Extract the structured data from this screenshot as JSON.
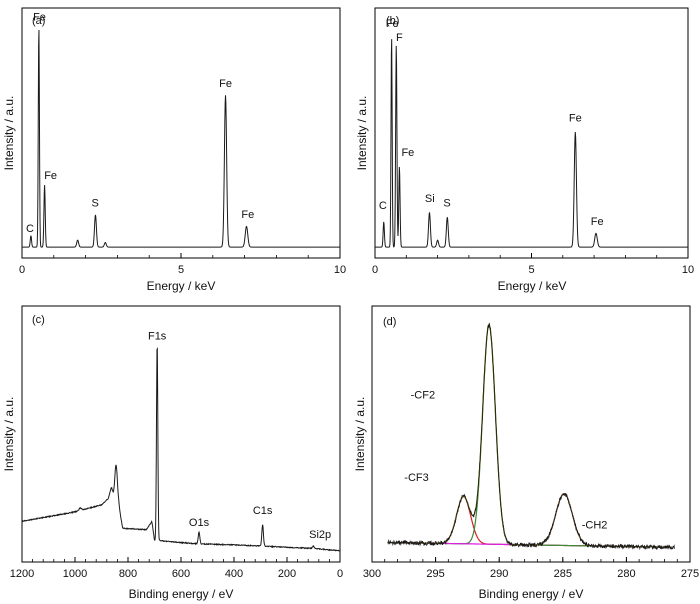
{
  "chart_data": [
    {
      "id": "a",
      "type": "line",
      "panel_label": "(a)",
      "xlabel": "Energy / keV",
      "ylabel": "Intensity / a.u.",
      "xlim": [
        0,
        10
      ],
      "ylim": [
        0,
        1
      ],
      "x_reversed": false,
      "xticks": [
        0,
        5,
        10
      ],
      "xtick_labels": [
        "0",
        "5",
        "10"
      ],
      "baseline": 0.004,
      "line_color": "#1a1a1a",
      "peaks": [
        {
          "x": 0.28,
          "h": 0.05,
          "w": 0.02
        },
        {
          "x": 0.53,
          "h": 0.96,
          "w": 0.018
        },
        {
          "x": 0.71,
          "h": 0.27,
          "w": 0.02
        },
        {
          "x": 1.75,
          "h": 0.03,
          "w": 0.03
        },
        {
          "x": 2.31,
          "h": 0.14,
          "w": 0.03
        },
        {
          "x": 2.62,
          "h": 0.02,
          "w": 0.03
        },
        {
          "x": 6.4,
          "h": 0.66,
          "w": 0.035
        },
        {
          "x": 7.06,
          "h": 0.09,
          "w": 0.04
        }
      ],
      "annotations": [
        {
          "text": "Fe",
          "x": 0.55,
          "y": 0.99
        },
        {
          "text": "Fe",
          "x": 0.9,
          "y": 0.3
        },
        {
          "text": "S",
          "x": 2.3,
          "y": 0.18
        },
        {
          "text": "C",
          "x": 0.25,
          "y": 0.07
        },
        {
          "text": "Fe",
          "x": 6.4,
          "y": 0.7
        },
        {
          "text": "Fe",
          "x": 7.1,
          "y": 0.13
        }
      ]
    },
    {
      "id": "b",
      "type": "line",
      "panel_label": "(b)",
      "xlabel": "Energy / keV",
      "ylabel": "Intensity / a.u.",
      "xlim": [
        0,
        10
      ],
      "ylim": [
        0,
        1
      ],
      "x_reversed": false,
      "xticks": [
        0,
        5,
        10
      ],
      "xtick_labels": [
        "0",
        "5",
        "10"
      ],
      "baseline": 0.004,
      "line_color": "#1a1a1a",
      "peaks": [
        {
          "x": 0.28,
          "h": 0.11,
          "w": 0.02
        },
        {
          "x": 0.53,
          "h": 0.92,
          "w": 0.018
        },
        {
          "x": 0.68,
          "h": 0.88,
          "w": 0.02
        },
        {
          "x": 0.78,
          "h": 0.35,
          "w": 0.02
        },
        {
          "x": 1.74,
          "h": 0.15,
          "w": 0.03
        },
        {
          "x": 2.0,
          "h": 0.03,
          "w": 0.03
        },
        {
          "x": 2.31,
          "h": 0.13,
          "w": 0.03
        },
        {
          "x": 6.4,
          "h": 0.5,
          "w": 0.035
        },
        {
          "x": 7.06,
          "h": 0.06,
          "w": 0.04
        }
      ],
      "annotations": [
        {
          "text": "Fe",
          "x": 0.55,
          "y": 0.96
        },
        {
          "text": "F",
          "x": 0.78,
          "y": 0.9
        },
        {
          "text": "Fe",
          "x": 1.05,
          "y": 0.4
        },
        {
          "text": "C",
          "x": 0.25,
          "y": 0.17
        },
        {
          "text": "Si",
          "x": 1.75,
          "y": 0.2
        },
        {
          "text": "S",
          "x": 2.3,
          "y": 0.18
        },
        {
          "text": "Fe",
          "x": 6.4,
          "y": 0.55
        },
        {
          "text": "Fe",
          "x": 7.1,
          "y": 0.1
        }
      ]
    },
    {
      "id": "c",
      "type": "line",
      "panel_label": "(c)",
      "xlabel": "Binding energy / eV",
      "ylabel": "Intensity / a.u.",
      "xlim": [
        1200,
        0
      ],
      "ylim": [
        0,
        1
      ],
      "x_reversed": true,
      "xticks": [
        1200,
        1000,
        800,
        600,
        400,
        200,
        0
      ],
      "xtick_labels": [
        "1200",
        "1000",
        "800",
        "600",
        "400",
        "200",
        "0"
      ],
      "background": [
        [
          1200,
          0.13
        ],
        [
          1000,
          0.17
        ],
        [
          900,
          0.2
        ],
        [
          870,
          0.23
        ],
        [
          860,
          0.22
        ],
        [
          835,
          0.2
        ],
        [
          820,
          0.1
        ],
        [
          730,
          0.095
        ],
        [
          710,
          0.13
        ],
        [
          700,
          0.05
        ],
        [
          600,
          0.04
        ],
        [
          540,
          0.035
        ],
        [
          400,
          0.03
        ],
        [
          290,
          0.025
        ],
        [
          200,
          0.02
        ],
        [
          100,
          0.015
        ],
        [
          0,
          0.005
        ]
      ],
      "line_color": "#1a1a1a",
      "peaks": [
        {
          "x": 980,
          "h": 0.01,
          "w": 5
        },
        {
          "x": 862,
          "h": 0.05,
          "w": 5
        },
        {
          "x": 845,
          "h": 0.16,
          "w": 5
        },
        {
          "x": 690,
          "h": 0.84,
          "w": 2.5
        },
        {
          "x": 532,
          "h": 0.05,
          "w": 3
        },
        {
          "x": 292,
          "h": 0.09,
          "w": 3
        },
        {
          "x": 101,
          "h": 0.01,
          "w": 3
        }
      ],
      "annotations": [
        {
          "text": "F1s",
          "x": 690,
          "y": 0.9
        },
        {
          "text": "O1s",
          "x": 532,
          "y": 0.11
        },
        {
          "text": "C1s",
          "x": 292,
          "y": 0.16
        },
        {
          "text": "Si2p",
          "x": 75,
          "y": 0.06
        }
      ]
    },
    {
      "id": "d",
      "type": "line",
      "panel_label": "(d)",
      "xlabel": "Binding energy / eV",
      "ylabel": "Intensity / a.u.",
      "xlim": [
        300,
        275
      ],
      "ylim": [
        0,
        1
      ],
      "x_reversed": true,
      "xticks": [
        300,
        295,
        290,
        285,
        280,
        275
      ],
      "xtick_labels": [
        "300",
        "295",
        "290",
        "285",
        "280",
        "275"
      ],
      "baseline_series": {
        "x": [
          298.5,
          276.5
        ],
        "y": [
          0.04,
          0.02
        ],
        "color": "#3b3bd0"
      },
      "fit_components": [
        {
          "label": "-CF3",
          "x": 292.8,
          "h": 0.2,
          "w": 0.55,
          "color": "#d42020"
        },
        {
          "label": "-CF2",
          "x": 290.8,
          "h": 0.93,
          "w": 0.5,
          "color": "#3a8a3a"
        },
        {
          "label": "-CH2",
          "x": 284.9,
          "h": 0.22,
          "w": 0.65,
          "color": "#e020e0"
        }
      ],
      "envelope_color": "#7a7a10",
      "raw_color": "#1a1a1a",
      "annotations": [
        {
          "text": "-CF2",
          "x": 296.0,
          "y": 0.65
        },
        {
          "text": "-CF3",
          "x": 296.5,
          "y": 0.3
        },
        {
          "text": "-CH2",
          "x": 282.5,
          "y": 0.1
        }
      ]
    }
  ]
}
